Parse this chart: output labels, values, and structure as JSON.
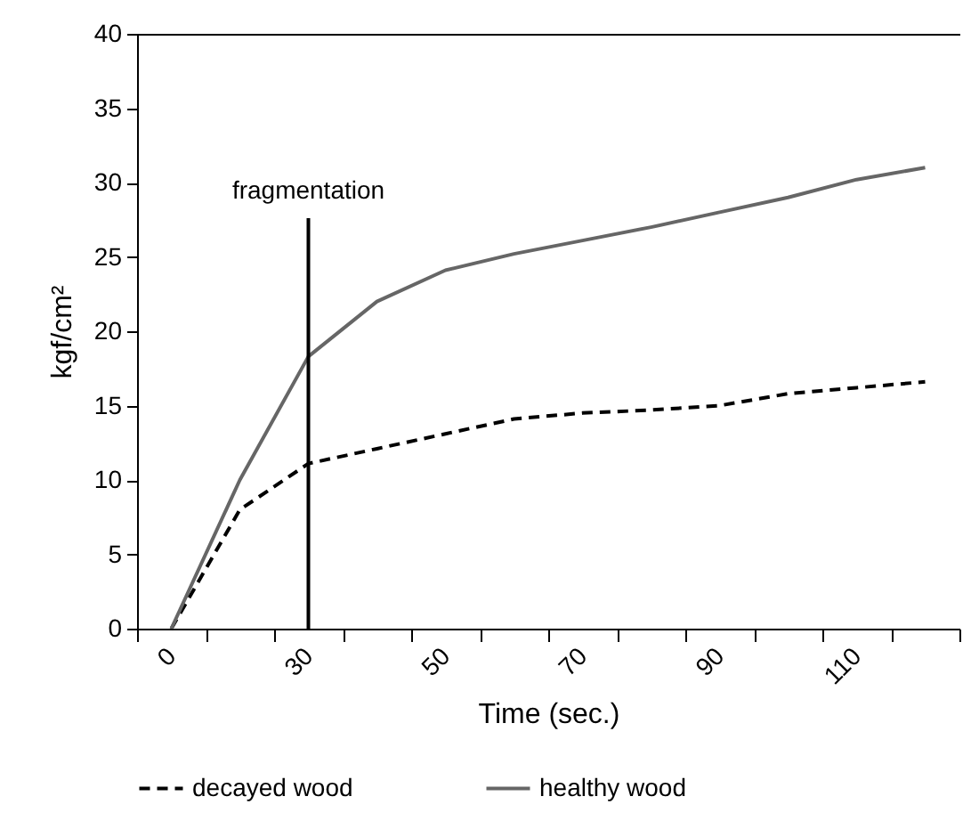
{
  "chart_data": {
    "type": "line",
    "xlabel": "Time (sec.)",
    "ylabel": "kgf/cm²",
    "categories": [
      "0",
      null,
      "30",
      null,
      "50",
      null,
      "70",
      null,
      "90",
      null,
      "110",
      null
    ],
    "series": [
      {
        "name": "decayed wood",
        "color": "#000000",
        "line_style": "dashed",
        "values": [
          0,
          8.0,
          11.1,
          12.1,
          13.1,
          14.1,
          14.5,
          14.7,
          15.0,
          15.8,
          16.2,
          16.6
        ]
      },
      {
        "name": "healthy wood",
        "color": "#666666",
        "line_style": "solid",
        "values": [
          0,
          10.0,
          18.3,
          22.0,
          24.1,
          25.2,
          26.1,
          27.0,
          28.0,
          29.0,
          30.2,
          31.0
        ]
      }
    ],
    "ylim": [
      0,
      40
    ],
    "yticks": [
      0,
      5,
      10,
      15,
      20,
      25,
      30,
      35,
      40
    ],
    "ref_lines": [
      {
        "axis": "x",
        "value": "30",
        "label": "fragmentation",
        "color": "#000000"
      }
    ],
    "grid": false,
    "legend": "bottom",
    "marker": "none"
  }
}
